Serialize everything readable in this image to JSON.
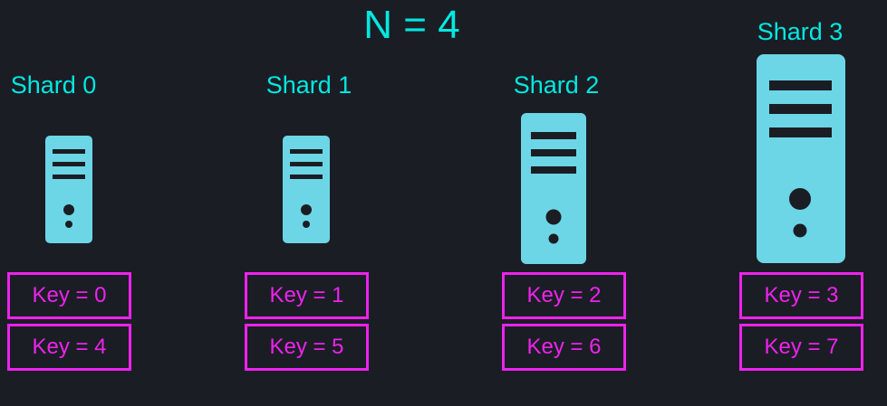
{
  "title": "N = 4",
  "colors": {
    "background": "#1b1d24",
    "label": "#00e8e0",
    "server": "#6cd6e6",
    "server_detail": "#1b1d24",
    "key": "#ee22ee"
  },
  "shards": [
    {
      "label": "Shard 0",
      "icon": "server-icon",
      "keys": [
        "Key = 0",
        "Key = 4"
      ]
    },
    {
      "label": "Shard 1",
      "icon": "server-icon",
      "keys": [
        "Key = 1",
        "Key = 5"
      ]
    },
    {
      "label": "Shard 2",
      "icon": "server-icon",
      "keys": [
        "Key = 2",
        "Key = 6"
      ]
    },
    {
      "label": "Shard 3",
      "icon": "server-icon",
      "keys": [
        "Key = 3",
        "Key = 7"
      ]
    }
  ]
}
